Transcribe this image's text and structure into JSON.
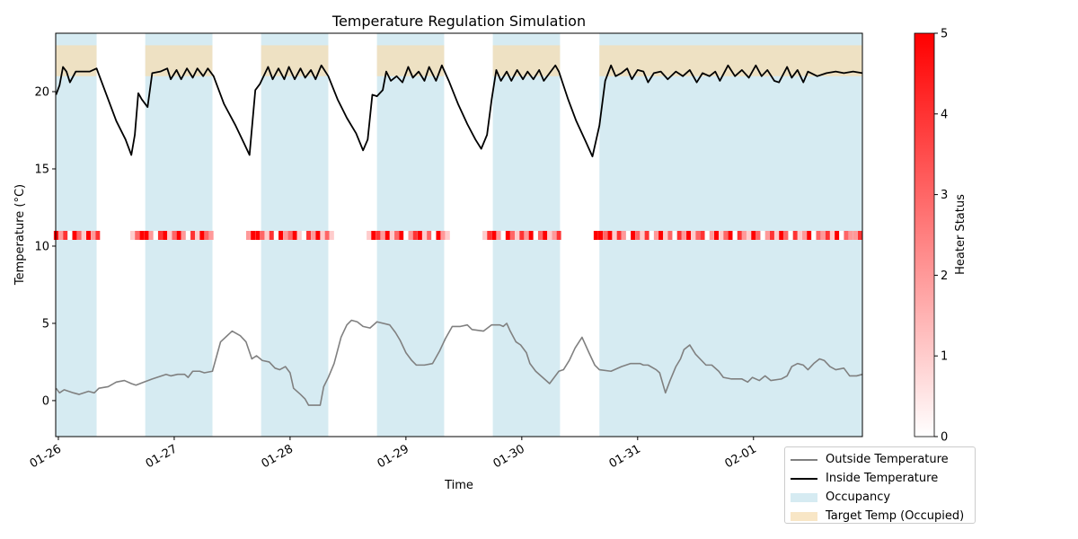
{
  "chart_data": {
    "type": "line",
    "title": "Temperature Regulation Simulation",
    "xlabel": "Time",
    "ylabel": "Temperature (°C)",
    "xlim": [
      25.977,
      32.94
    ],
    "ylim": [
      -2.33,
      23.78
    ],
    "xticks": [
      {
        "value": 26,
        "label": "01-26"
      },
      {
        "value": 27,
        "label": "01-27"
      },
      {
        "value": 28,
        "label": "01-28"
      },
      {
        "value": 29,
        "label": "01-29"
      },
      {
        "value": 30,
        "label": "01-30"
      },
      {
        "value": 31,
        "label": "01-31"
      },
      {
        "value": 32,
        "label": "02-01"
      }
    ],
    "yticks": [
      0,
      5,
      10,
      15,
      20
    ],
    "series": [
      {
        "name": "Outside Temperature",
        "color": "#808080",
        "x": [
          25.98,
          26.01,
          26.05,
          26.13,
          26.18,
          26.26,
          26.31,
          26.35,
          26.43,
          26.5,
          26.57,
          26.63,
          26.67,
          26.74,
          26.81,
          26.93,
          26.97,
          27.03,
          27.09,
          27.12,
          27.16,
          27.22,
          27.26,
          27.33,
          27.4,
          27.5,
          27.57,
          27.62,
          27.67,
          27.71,
          27.76,
          27.82,
          27.87,
          27.91,
          27.96,
          28.0,
          28.03,
          28.09,
          28.13,
          28.16,
          28.22,
          28.26,
          28.29,
          28.33,
          28.38,
          28.44,
          28.49,
          28.53,
          28.58,
          28.63,
          28.69,
          28.75,
          28.86,
          28.91,
          28.95,
          29.0,
          29.05,
          29.09,
          29.16,
          29.23,
          29.29,
          29.34,
          29.4,
          29.47,
          29.53,
          29.57,
          29.67,
          29.74,
          29.81,
          29.84,
          29.87,
          29.9,
          29.95,
          29.99,
          30.04,
          30.07,
          30.12,
          30.18,
          30.24,
          30.32,
          30.36,
          30.41,
          30.46,
          30.52,
          30.58,
          30.63,
          30.67,
          30.77,
          30.86,
          30.94,
          31.02,
          31.05,
          31.09,
          31.16,
          31.19,
          31.24,
          31.28,
          31.33,
          31.37,
          31.4,
          31.45,
          31.5,
          31.59,
          31.64,
          31.7,
          31.74,
          31.81,
          31.9,
          31.95,
          31.99,
          32.05,
          32.1,
          32.15,
          32.24,
          32.29,
          32.33,
          32.38,
          32.43,
          32.47,
          32.52,
          32.57,
          32.61,
          32.66,
          32.71,
          32.78,
          32.83,
          32.89,
          32.94
        ],
        "values": [
          0.8,
          0.5,
          0.7,
          0.5,
          0.4,
          0.6,
          0.5,
          0.8,
          0.9,
          1.2,
          1.3,
          1.1,
          1.0,
          1.2,
          1.4,
          1.7,
          1.6,
          1.7,
          1.7,
          1.5,
          1.9,
          1.9,
          1.8,
          1.9,
          3.8,
          4.5,
          4.2,
          3.8,
          2.7,
          2.9,
          2.6,
          2.5,
          2.1,
          2.0,
          2.2,
          1.8,
          0.8,
          0.4,
          0.1,
          -0.3,
          -0.3,
          -0.3,
          0.9,
          1.5,
          2.4,
          4.1,
          4.9,
          5.2,
          5.1,
          4.8,
          4.7,
          5.1,
          4.9,
          4.4,
          3.9,
          3.1,
          2.6,
          2.3,
          2.3,
          2.4,
          3.2,
          4.0,
          4.8,
          4.8,
          4.9,
          4.6,
          4.5,
          4.9,
          4.9,
          4.8,
          5.0,
          4.5,
          3.8,
          3.6,
          3.1,
          2.4,
          1.9,
          1.5,
          1.1,
          1.9,
          2.0,
          2.6,
          3.4,
          4.1,
          3.1,
          2.3,
          2.0,
          1.9,
          2.2,
          2.4,
          2.4,
          2.3,
          2.3,
          2.0,
          1.8,
          0.5,
          1.3,
          2.2,
          2.7,
          3.3,
          3.6,
          3.0,
          2.3,
          2.3,
          1.9,
          1.5,
          1.4,
          1.4,
          1.2,
          1.5,
          1.3,
          1.6,
          1.3,
          1.4,
          1.6,
          2.2,
          2.4,
          2.3,
          2.0,
          2.4,
          2.7,
          2.6,
          2.2,
          2.0,
          2.1,
          1.6,
          1.6,
          1.7
        ]
      },
      {
        "name": "Inside Temperature",
        "color": "#000000",
        "x": [
          25.98,
          26.01,
          26.04,
          26.07,
          26.1,
          26.15,
          26.21,
          26.27,
          26.33,
          26.43,
          26.5,
          26.58,
          26.63,
          26.66,
          26.69,
          26.72,
          26.77,
          26.81,
          26.88,
          26.94,
          26.97,
          27.02,
          27.06,
          27.11,
          27.16,
          27.2,
          27.25,
          27.29,
          27.34,
          27.43,
          27.53,
          27.6,
          27.65,
          27.7,
          27.74,
          27.81,
          27.85,
          27.9,
          27.95,
          27.99,
          28.04,
          28.09,
          28.13,
          28.18,
          28.22,
          28.27,
          28.33,
          28.41,
          28.49,
          28.57,
          28.63,
          28.67,
          28.71,
          28.75,
          28.8,
          28.83,
          28.87,
          28.92,
          28.97,
          29.02,
          29.06,
          29.11,
          29.16,
          29.2,
          29.26,
          29.31,
          29.37,
          29.45,
          29.53,
          29.6,
          29.65,
          29.7,
          29.74,
          29.78,
          29.82,
          29.87,
          29.91,
          29.96,
          30.01,
          30.05,
          30.1,
          30.15,
          30.19,
          30.24,
          30.29,
          30.32,
          30.4,
          30.47,
          30.55,
          30.61,
          30.67,
          30.72,
          30.77,
          30.81,
          30.86,
          30.91,
          30.95,
          31.0,
          31.05,
          31.09,
          31.14,
          31.2,
          31.26,
          31.33,
          31.39,
          31.45,
          31.51,
          31.56,
          31.62,
          31.67,
          31.71,
          31.78,
          31.84,
          31.9,
          31.96,
          32.02,
          32.07,
          32.12,
          32.18,
          32.22,
          32.29,
          32.33,
          32.38,
          32.43,
          32.47,
          32.55,
          32.63,
          32.71,
          32.78,
          32.86,
          32.94
        ],
        "values": [
          19.8,
          20.4,
          21.6,
          21.3,
          20.6,
          21.3,
          21.3,
          21.3,
          21.5,
          19.5,
          18.1,
          16.9,
          15.9,
          17.2,
          19.9,
          19.5,
          19.0,
          21.2,
          21.3,
          21.5,
          20.8,
          21.4,
          20.8,
          21.5,
          20.9,
          21.5,
          21.0,
          21.5,
          21.0,
          19.2,
          17.8,
          16.7,
          15.9,
          20.1,
          20.5,
          21.6,
          20.8,
          21.5,
          20.8,
          21.6,
          20.8,
          21.5,
          20.9,
          21.4,
          20.8,
          21.7,
          21.0,
          19.5,
          18.3,
          17.3,
          16.2,
          16.9,
          19.8,
          19.7,
          20.1,
          21.3,
          20.7,
          21.0,
          20.6,
          21.6,
          20.9,
          21.3,
          20.7,
          21.6,
          20.7,
          21.7,
          20.7,
          19.2,
          17.9,
          16.9,
          16.3,
          17.2,
          19.5,
          21.4,
          20.7,
          21.3,
          20.7,
          21.4,
          20.8,
          21.3,
          20.8,
          21.4,
          20.7,
          21.2,
          21.7,
          21.3,
          19.5,
          18.1,
          16.8,
          15.8,
          17.8,
          20.7,
          21.7,
          21.0,
          21.2,
          21.5,
          20.8,
          21.4,
          21.3,
          20.6,
          21.2,
          21.3,
          20.8,
          21.3,
          21.0,
          21.4,
          20.6,
          21.2,
          21.0,
          21.3,
          20.7,
          21.7,
          21.0,
          21.4,
          20.9,
          21.7,
          21.0,
          21.4,
          20.7,
          20.6,
          21.6,
          20.9,
          21.4,
          20.6,
          21.3,
          21.0,
          21.2,
          21.3,
          21.2,
          21.3,
          21.2
        ]
      }
    ],
    "occupancy": {
      "name": "Occupancy",
      "color": "#add8e6",
      "intervals": [
        [
          25.977,
          26.33
        ],
        [
          26.75,
          27.33
        ],
        [
          27.75,
          28.33
        ],
        [
          28.75,
          29.33
        ],
        [
          29.75,
          30.33
        ],
        [
          30.67,
          32.94
        ]
      ]
    },
    "target": {
      "name": "Target Temp (Occupied)",
      "color": "#f5deb3",
      "range": [
        21,
        23
      ]
    },
    "heater": {
      "x": [
        25.98,
        26.02,
        26.06,
        26.1,
        26.14,
        26.18,
        26.22,
        26.26,
        26.3,
        26.34,
        26.64,
        26.68,
        26.72,
        26.76,
        26.8,
        26.84,
        26.88,
        26.92,
        26.96,
        27.0,
        27.04,
        27.08,
        27.12,
        27.16,
        27.2,
        27.24,
        27.28,
        27.32,
        27.36,
        27.64,
        27.68,
        27.72,
        27.76,
        27.8,
        27.84,
        27.88,
        27.92,
        27.96,
        28.0,
        28.04,
        28.08,
        28.12,
        28.16,
        28.2,
        28.24,
        28.28,
        28.32,
        28.36,
        28.64,
        28.68,
        28.72,
        28.76,
        28.8,
        28.84,
        28.88,
        28.92,
        28.96,
        29.0,
        29.04,
        29.08,
        29.12,
        29.16,
        29.2,
        29.24,
        29.28,
        29.32,
        29.36,
        29.68,
        29.72,
        29.76,
        29.8,
        29.84,
        29.88,
        29.92,
        29.96,
        30.0,
        30.04,
        30.08,
        30.12,
        30.16,
        30.2,
        30.24,
        30.28,
        30.32,
        30.64,
        30.68,
        30.72,
        30.76,
        30.8,
        30.84,
        30.88,
        30.92,
        30.96,
        31.0,
        31.04,
        31.08,
        31.12,
        31.16,
        31.2,
        31.24,
        31.28,
        31.32,
        31.36,
        31.4,
        31.44,
        31.48,
        31.52,
        31.56,
        31.6,
        31.64,
        31.68,
        31.72,
        31.76,
        31.8,
        31.84,
        31.88,
        31.92,
        31.96,
        32.0,
        32.04,
        32.08,
        32.12,
        32.16,
        32.2,
        32.24,
        32.28,
        32.32,
        32.36,
        32.4,
        32.44,
        32.48,
        32.52,
        32.56,
        32.6,
        32.64,
        32.68,
        32.72,
        32.76,
        32.8,
        32.84,
        32.88,
        32.92
      ],
      "values": [
        5,
        2,
        4,
        0,
        5,
        3,
        1,
        5,
        2,
        4,
        1,
        3,
        5,
        5,
        2,
        0,
        4,
        5,
        1,
        3,
        5,
        2,
        0,
        4,
        1,
        5,
        3,
        2,
        0,
        2,
        5,
        5,
        3,
        1,
        4,
        0,
        5,
        2,
        3,
        5,
        1,
        0,
        4,
        2,
        5,
        1,
        3,
        1,
        0,
        1,
        5,
        4,
        2,
        5,
        1,
        3,
        5,
        0,
        2,
        4,
        5,
        1,
        3,
        0,
        5,
        2,
        1,
        1,
        4,
        5,
        2,
        0,
        5,
        3,
        1,
        4,
        2,
        5,
        0,
        3,
        5,
        1,
        2,
        4,
        5,
        5,
        3,
        5,
        1,
        4,
        2,
        0,
        5,
        3,
        1,
        4,
        0,
        2,
        5,
        1,
        3,
        0,
        4,
        2,
        5,
        1,
        3,
        4,
        0,
        2,
        5,
        1,
        3,
        5,
        0,
        4,
        2,
        1,
        5,
        3,
        0,
        2,
        4,
        1,
        5,
        3,
        0,
        4,
        1,
        2,
        5,
        0,
        3,
        2,
        4,
        1,
        5,
        0,
        3,
        2,
        2,
        4
      ]
    },
    "colorbar": {
      "label": "Heater Status",
      "lim": [
        0,
        5
      ],
      "ticks": [
        0,
        1,
        2,
        3,
        4,
        5
      ],
      "colors": [
        "#ffffff",
        "#ff0000"
      ]
    }
  }
}
